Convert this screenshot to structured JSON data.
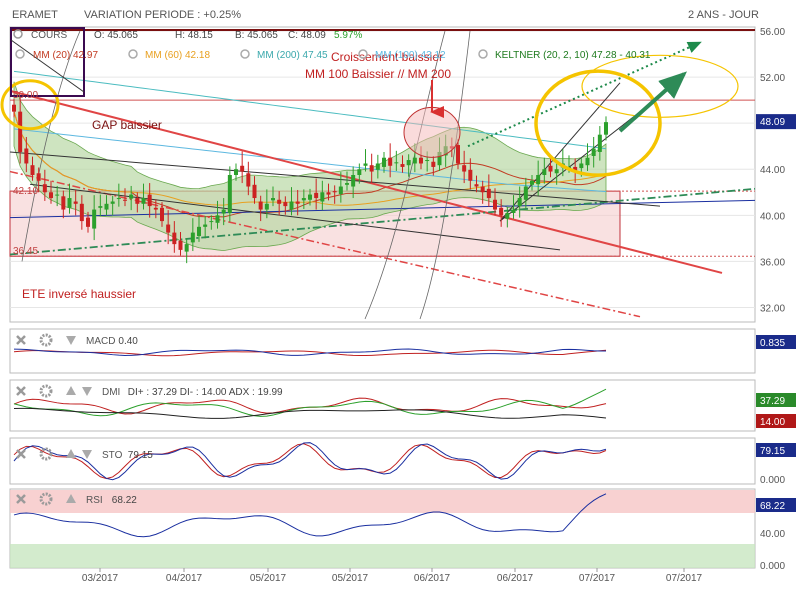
{
  "header": {
    "ticker": "ERAMET",
    "variation": "VARIATION PERIODE : +0.25%",
    "period": "2 ANS - JOUR"
  },
  "legend": {
    "cours_label": "COURS",
    "ohlc": {
      "o": "O: 45.065",
      "h": "H: 48.15",
      "b": "B: 45.065",
      "c": "C: 48.09",
      "pct": "5.97%"
    },
    "mm20": "MM (20)  42.97",
    "mm60": "MM (60)  42.18",
    "mm200": "MM (200)  47.45",
    "mm100": "MM (100)  43.12",
    "keltner": "KELTNER (20, 2, 10)  47.28 - 40.31"
  },
  "colors": {
    "up": "#2ca02c",
    "down": "#cc2222",
    "mm20": "#c23b22",
    "mm60": "#e8a020",
    "mm200": "#4bbcc0",
    "mm100": "#5db8e0",
    "keltner": "#1d7a1d",
    "blue": "#1a2fa0",
    "cloud": "#b9d9a5",
    "zone": "#f4c8c8",
    "annot": "#d93030",
    "yellow": "#f5c400"
  },
  "annotations": {
    "gap": "GAP baissier",
    "croisement_1": "Croissement baissier",
    "croisement_2": "MM 100 Baissier // MM 200",
    "ete": "ETE inversé haussier",
    "level_top": "50.00",
    "level_mid": "42.10",
    "level_low": "36.45"
  },
  "panels": {
    "macd": {
      "label": "MACD",
      "value": "0.40",
      "badge": "0.835"
    },
    "dmi": {
      "label": "DMI",
      "value": "DI+ : 37.29  DI- : 14.00  ADX : 19.99",
      "badge_plus": "37.29",
      "badge_minus": "14.00"
    },
    "sto": {
      "label": "STO",
      "value": "79.15",
      "badge": "79.15",
      "axis": [
        "0.000"
      ]
    },
    "rsi": {
      "label": "RSI",
      "value": "68.22",
      "badge": "68.22",
      "axis": [
        "40.00",
        "0.000"
      ]
    }
  },
  "price_badge": "48.09",
  "chart_data": {
    "type": "candlestick",
    "title": "ERAMET",
    "ylim": [
      31,
      56
    ],
    "y_ticks": [
      "56.00",
      "52.00",
      "48.00",
      "44.00",
      "40.00",
      "36.00",
      "32.00"
    ],
    "x_ticks": [
      "03/2017",
      "04/2017",
      "05/2017",
      "05/2017",
      "06/2017",
      "06/2017",
      "07/2017",
      "07/2017"
    ],
    "close": [
      49.0,
      45.5,
      44.5,
      43.5,
      43.0,
      42.0,
      41.5,
      41.8,
      40.5,
      41.5,
      41.0,
      39.5,
      39.0,
      40.5,
      40.8,
      41.0,
      41.2,
      41.5,
      41.3,
      41.8,
      41.0,
      41.5,
      40.8,
      40.5,
      39.5,
      38.5,
      37.5,
      37.0,
      37.5,
      38.5,
      39.0,
      39.2,
      39.5,
      40.0,
      40.5,
      43.5,
      44.0,
      43.8,
      42.5,
      41.5,
      40.5,
      41.0,
      41.5,
      41.0,
      40.8,
      41.2,
      41.0,
      41.5,
      41.8,
      41.5,
      42.0,
      41.8,
      42.0,
      42.5,
      42.8,
      43.5,
      44.0,
      44.5,
      43.8,
      44.5,
      45.0,
      44.3,
      44.6,
      44.2,
      44.8,
      45.0,
      44.5,
      44.8,
      44.2,
      45.5,
      46.0,
      45.8,
      44.5,
      43.8,
      43.0,
      42.5,
      42.0,
      41.5,
      40.5,
      40.0,
      40.2,
      40.5,
      41.5,
      42.5,
      43.0,
      43.5,
      44.0,
      43.8,
      44.0,
      44.5,
      44.2,
      43.8,
      44.5,
      45.0,
      45.8,
      47.0,
      48.09
    ],
    "series": [
      {
        "name": "MM (20)",
        "last": 42.97
      },
      {
        "name": "MM (60)",
        "last": 42.18
      },
      {
        "name": "MM (100)",
        "last": 43.12
      },
      {
        "name": "MM (200)",
        "last": 47.45
      },
      {
        "name": "KELTNER (20, 2, 10)",
        "upper": 47.28,
        "lower": 40.31
      }
    ],
    "indicators": {
      "macd": 0.4,
      "macd_badge": 0.835,
      "dmi_plus": 37.29,
      "dmi_minus": 14.0,
      "adx": 19.99,
      "sto": 79.15,
      "rsi": 68.22
    }
  }
}
